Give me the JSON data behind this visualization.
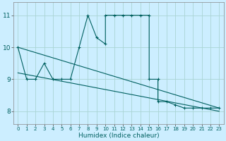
{
  "title": "",
  "xlabel": "Humidex (Indice chaleur)",
  "bg_color": "#cceeff",
  "line_color": "#006060",
  "grid_color": "#aad4d4",
  "xlim": [
    -0.5,
    23.5
  ],
  "ylim": [
    7.6,
    11.4
  ],
  "yticks": [
    8,
    9,
    10,
    11
  ],
  "xticks": [
    0,
    1,
    2,
    3,
    4,
    5,
    6,
    7,
    8,
    9,
    10,
    11,
    12,
    13,
    14,
    15,
    16,
    17,
    18,
    19,
    20,
    21,
    22,
    23
  ],
  "series1": [
    [
      0,
      10.0
    ],
    [
      1,
      9.0
    ],
    [
      2,
      9.0
    ],
    [
      3,
      9.5
    ],
    [
      4,
      9.0
    ],
    [
      5,
      9.0
    ],
    [
      6,
      9.0
    ],
    [
      7,
      10.0
    ],
    [
      8,
      11.0
    ],
    [
      9,
      10.3
    ],
    [
      10,
      10.1
    ],
    [
      10,
      11.0
    ],
    [
      11,
      11.0
    ],
    [
      12,
      11.0
    ],
    [
      13,
      11.0
    ],
    [
      14,
      11.0
    ],
    [
      15,
      11.0
    ],
    [
      15,
      9.0
    ],
    [
      16,
      9.0
    ],
    [
      16,
      8.3
    ],
    [
      17,
      8.3
    ],
    [
      18,
      8.2
    ],
    [
      19,
      8.1
    ],
    [
      20,
      8.1
    ],
    [
      21,
      8.1
    ],
    [
      22,
      8.1
    ],
    [
      23,
      8.1
    ]
  ],
  "series2": [
    [
      0,
      10.0
    ],
    [
      23,
      8.1
    ]
  ],
  "series3": [
    [
      0,
      9.2
    ],
    [
      23,
      8.0
    ]
  ]
}
